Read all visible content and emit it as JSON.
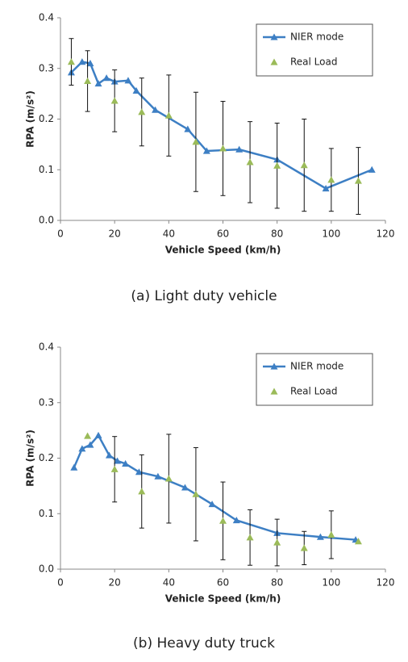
{
  "chart_data": [
    {
      "type": "scatter",
      "caption": "(a) Light duty vehicle",
      "x_label": "Vehicle Speed (km/h)",
      "y_label": "RPA (m/s²)",
      "xlim": [
        0,
        120
      ],
      "xticks": [
        0,
        20,
        40,
        60,
        80,
        100,
        120
      ],
      "ylim": [
        0,
        0.4
      ],
      "yticks": [
        {
          "value": 0,
          "label": "0.0"
        },
        0.1,
        0.2,
        0.3,
        0.4
      ],
      "legend": "upper right",
      "series": [
        {
          "name": "NIER mode",
          "color": "#3d7fc4",
          "line": true,
          "x": [
            4,
            8,
            11,
            14,
            17,
            20,
            25,
            28,
            35,
            47,
            54,
            66,
            80,
            98,
            115
          ],
          "values": [
            0.292,
            0.313,
            0.31,
            0.27,
            0.281,
            0.274,
            0.276,
            0.256,
            0.218,
            0.18,
            0.137,
            0.14,
            0.12,
            0.063,
            0.1
          ]
        },
        {
          "name": "Real Load",
          "color": "#9bbb59",
          "line": false,
          "x": [
            4,
            10,
            20,
            30,
            40,
            50,
            60,
            70,
            80,
            90,
            100,
            110
          ],
          "values": [
            0.313,
            0.275,
            0.236,
            0.214,
            0.207,
            0.155,
            0.142,
            0.115,
            0.108,
            0.109,
            0.08,
            0.078
          ],
          "errors": [
            0.046,
            0.06,
            0.061,
            0.067,
            0.08,
            0.098,
            0.093,
            0.08,
            0.084,
            0.091,
            0.062,
            0.066
          ]
        }
      ]
    },
    {
      "type": "scatter",
      "caption": "(b) Heavy duty truck",
      "x_label": "Vehicle Speed (km/h)",
      "y_label": "RPA (m/s²)",
      "xlim": [
        0,
        120
      ],
      "xticks": [
        0,
        20,
        40,
        60,
        80,
        100,
        120
      ],
      "ylim": [
        0,
        0.4
      ],
      "yticks": [
        {
          "value": 0,
          "label": "0.0"
        },
        0.1,
        0.2,
        0.3,
        0.4
      ],
      "legend": "upper right",
      "series": [
        {
          "name": "NIER mode",
          "color": "#3d7fc4",
          "line": true,
          "x": [
            5,
            8,
            11,
            14,
            18,
            21,
            24,
            29,
            36,
            46,
            56,
            65,
            80,
            96,
            109
          ],
          "values": [
            0.183,
            0.217,
            0.224,
            0.241,
            0.205,
            0.195,
            0.19,
            0.175,
            0.167,
            0.147,
            0.117,
            0.088,
            0.065,
            0.058,
            0.053
          ]
        },
        {
          "name": "Real Load",
          "color": "#9bbb59",
          "line": false,
          "x": [
            10,
            20,
            30,
            40,
            50,
            60,
            70,
            80,
            90,
            100,
            110
          ],
          "values": [
            0.24,
            0.18,
            0.14,
            0.163,
            0.135,
            0.087,
            0.057,
            0.048,
            0.038,
            0.062,
            0.05
          ],
          "errors": [
            null,
            0.059,
            0.066,
            0.08,
            0.084,
            0.07,
            0.05,
            0.042,
            0.03,
            0.043,
            null
          ]
        }
      ]
    }
  ]
}
